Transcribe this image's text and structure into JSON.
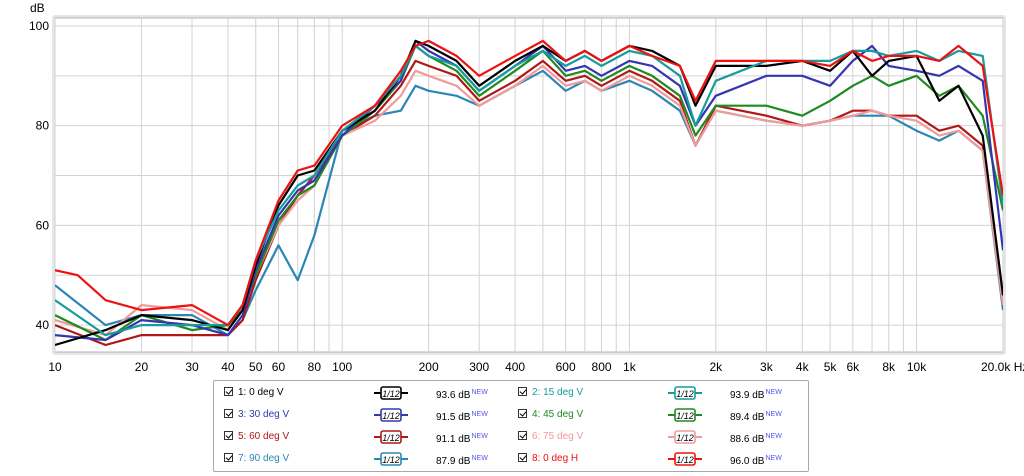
{
  "chart_data": {
    "type": "line",
    "xscale": "log",
    "xlim": [
      10,
      20000
    ],
    "ylim": [
      34.6,
      101.6
    ],
    "ylabel": "dB",
    "xunit": "Hz",
    "grid": true,
    "legend_position": "bottom",
    "y_ticks": [
      40,
      60,
      80,
      100
    ],
    "x_ticks": [
      {
        "v": 10,
        "label": "10"
      },
      {
        "v": 20,
        "label": "20"
      },
      {
        "v": 30,
        "label": "30"
      },
      {
        "v": 40,
        "label": "40"
      },
      {
        "v": 50,
        "label": "50"
      },
      {
        "v": 60,
        "label": "60"
      },
      {
        "v": 80,
        "label": "80"
      },
      {
        "v": 100,
        "label": "100"
      },
      {
        "v": 200,
        "label": "200"
      },
      {
        "v": 300,
        "label": "300"
      },
      {
        "v": 400,
        "label": "400"
      },
      {
        "v": 600,
        "label": "600"
      },
      {
        "v": 800,
        "label": "800"
      },
      {
        "v": 1000,
        "label": "1k"
      },
      {
        "v": 2000,
        "label": "2k"
      },
      {
        "v": 3000,
        "label": "3k"
      },
      {
        "v": 4000,
        "label": "4k"
      },
      {
        "v": 5000,
        "label": "5k"
      },
      {
        "v": 6000,
        "label": "6k"
      },
      {
        "v": 8000,
        "label": "8k"
      },
      {
        "v": 10000,
        "label": "10k"
      },
      {
        "v": 20000,
        "label": "20.0k Hz"
      }
    ],
    "series": [
      {
        "name": "1: 0 deg V",
        "color": "#000000",
        "smoothing": "1/12",
        "level": "93.6 dB",
        "badge": "NEW",
        "x": [
          10,
          15,
          20,
          30,
          40,
          45,
          50,
          60,
          70,
          80,
          100,
          130,
          160,
          180,
          200,
          250,
          300,
          400,
          500,
          600,
          700,
          800,
          1000,
          1200,
          1500,
          1700,
          2000,
          3000,
          4000,
          5000,
          6000,
          7000,
          8000,
          10000,
          12000,
          14000,
          17000,
          20000
        ],
        "y": [
          36,
          39,
          42,
          41,
          39,
          43,
          52,
          64,
          70,
          71,
          79,
          83,
          90,
          97,
          96,
          93,
          88,
          93,
          96,
          93,
          95,
          93,
          96,
          95,
          92,
          84,
          92,
          92,
          93,
          91,
          95,
          90,
          93,
          94,
          85,
          88,
          78,
          46
        ]
      },
      {
        "name": "2: 15 deg V",
        "color": "#169c9c",
        "smoothing": "1/12",
        "level": "93.9 dB",
        "badge": "NEW",
        "x": [
          10,
          15,
          20,
          30,
          40,
          45,
          50,
          60,
          70,
          80,
          100,
          130,
          160,
          180,
          200,
          250,
          300,
          400,
          500,
          600,
          700,
          800,
          1000,
          1200,
          1500,
          1700,
          2000,
          3000,
          4000,
          5000,
          6000,
          7000,
          8000,
          10000,
          12000,
          14000,
          17000,
          20000
        ],
        "y": [
          45,
          38,
          40,
          40,
          40,
          44,
          53,
          63,
          68,
          70,
          79,
          84,
          90,
          96,
          94,
          92,
          87,
          92,
          95,
          92,
          94,
          92,
          95,
          94,
          90,
          80,
          89,
          93,
          93,
          93,
          95,
          95,
          94,
          95,
          93,
          95,
          94,
          64
        ]
      },
      {
        "name": "3: 30 deg V",
        "color": "#3535b0",
        "smoothing": "1/12",
        "level": "91.5 dB",
        "badge": "NEW",
        "x": [
          10,
          15,
          20,
          30,
          40,
          45,
          50,
          60,
          70,
          80,
          100,
          130,
          160,
          180,
          200,
          250,
          300,
          400,
          500,
          600,
          700,
          800,
          1000,
          1200,
          1500,
          1700,
          2000,
          3000,
          4000,
          5000,
          6000,
          7000,
          8000,
          10000,
          12000,
          14000,
          17000,
          20000
        ],
        "y": [
          38,
          37,
          41,
          40,
          38,
          42,
          51,
          62,
          67,
          69,
          78,
          84,
          89,
          97,
          95,
          92,
          87,
          92,
          96,
          91,
          92,
          90,
          93,
          92,
          88,
          80,
          86,
          90,
          90,
          88,
          93,
          96,
          92,
          91,
          90,
          92,
          89,
          55
        ]
      },
      {
        "name": "4: 45 deg V",
        "color": "#1f8a1f",
        "smoothing": "1/12",
        "level": "89.4 dB",
        "badge": "NEW",
        "x": [
          10,
          15,
          20,
          30,
          40,
          45,
          50,
          60,
          70,
          80,
          100,
          130,
          160,
          180,
          200,
          250,
          300,
          400,
          500,
          600,
          700,
          800,
          1000,
          1200,
          1500,
          1700,
          2000,
          3000,
          4000,
          5000,
          6000,
          7000,
          8000,
          10000,
          12000,
          14000,
          17000,
          20000
        ],
        "y": [
          42,
          37,
          42,
          39,
          40,
          43,
          50,
          61,
          66,
          68,
          78,
          83,
          89,
          96,
          94,
          91,
          86,
          91,
          95,
          90,
          91,
          89,
          92,
          90,
          86,
          78,
          84,
          84,
          82,
          85,
          88,
          90,
          88,
          90,
          86,
          88,
          82,
          63
        ]
      },
      {
        "name": "5: 60 deg V",
        "color": "#b01818",
        "smoothing": "1/12",
        "level": "91.1 dB",
        "badge": "NEW",
        "x": [
          10,
          15,
          20,
          30,
          40,
          45,
          50,
          60,
          70,
          80,
          100,
          130,
          160,
          180,
          200,
          250,
          300,
          400,
          500,
          600,
          700,
          800,
          1000,
          1200,
          1500,
          1700,
          2000,
          3000,
          4000,
          5000,
          6000,
          7000,
          8000,
          10000,
          12000,
          14000,
          17000,
          20000
        ],
        "y": [
          40,
          36,
          38,
          38,
          38,
          41,
          49,
          60,
          66,
          70,
          78,
          82,
          88,
          93,
          92,
          90,
          85,
          89,
          93,
          89,
          90,
          88,
          91,
          89,
          85,
          76,
          84,
          82,
          80,
          81,
          83,
          83,
          82,
          82,
          79,
          80,
          76,
          45
        ]
      },
      {
        "name": "6: 75 deg V",
        "color": "#f09a9a",
        "smoothing": "1/12",
        "level": "88.6 dB",
        "badge": "NEW",
        "x": [
          10,
          15,
          20,
          30,
          40,
          45,
          50,
          60,
          70,
          80,
          100,
          130,
          160,
          180,
          200,
          250,
          300,
          400,
          500,
          600,
          700,
          800,
          1000,
          1200,
          1500,
          1700,
          2000,
          3000,
          4000,
          5000,
          6000,
          7000,
          8000,
          10000,
          12000,
          14000,
          17000,
          20000
        ],
        "y": [
          41,
          38,
          44,
          43,
          39,
          44,
          50,
          60,
          65,
          68,
          78,
          81,
          86,
          91,
          90,
          88,
          84,
          88,
          92,
          88,
          89,
          87,
          90,
          88,
          84,
          76,
          83,
          81,
          80,
          81,
          82,
          83,
          82,
          81,
          78,
          79,
          75,
          44
        ]
      },
      {
        "name": "7: 90 deg V",
        "color": "#2b86b6",
        "smoothing": "1/12",
        "level": "87.9 dB",
        "badge": "NEW",
        "x": [
          10,
          15,
          20,
          30,
          40,
          45,
          50,
          60,
          70,
          80,
          100,
          130,
          160,
          180,
          200,
          250,
          300,
          400,
          500,
          600,
          700,
          800,
          1000,
          1200,
          1500,
          1700,
          2000,
          3000,
          4000,
          5000,
          6000,
          7000,
          8000,
          10000,
          12000,
          14000,
          17000,
          20000
        ],
        "y": [
          48,
          40,
          42,
          42,
          38,
          41,
          47,
          56,
          49,
          58,
          79,
          82,
          83,
          88,
          87,
          86,
          84,
          88,
          91,
          87,
          89,
          87,
          89,
          87,
          83,
          76,
          83,
          81,
          80,
          81,
          82,
          82,
          82,
          79,
          77,
          79,
          75,
          43
        ]
      },
      {
        "name": "8: 0 deg H",
        "color": "#ee1111",
        "smoothing": "1/12",
        "level": "96.0 dB",
        "badge": "NEW",
        "x": [
          10,
          12,
          15,
          20,
          30,
          40,
          45,
          50,
          60,
          70,
          80,
          100,
          130,
          160,
          180,
          200,
          250,
          300,
          400,
          500,
          600,
          700,
          800,
          1000,
          1200,
          1500,
          1700,
          2000,
          3000,
          4000,
          5000,
          6000,
          7000,
          8000,
          10000,
          12000,
          14000,
          17000,
          20000
        ],
        "y": [
          51,
          50,
          45,
          43,
          44,
          40,
          44,
          53,
          65,
          71,
          72,
          80,
          84,
          91,
          96,
          97,
          94,
          90,
          94,
          97,
          93,
          95,
          93,
          96,
          94,
          92,
          85,
          93,
          93,
          93,
          92,
          95,
          93,
          94,
          94,
          93,
          96,
          92,
          66
        ]
      }
    ]
  }
}
